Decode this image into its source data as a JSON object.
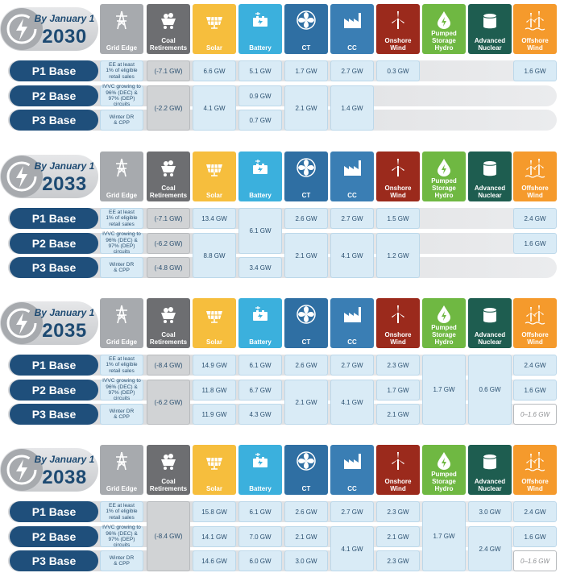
{
  "columns": [
    {
      "key": "grid",
      "label": [
        "Grid Edge"
      ],
      "icon": "transmission-tower-icon",
      "color": "#a7aaae"
    },
    {
      "key": "coal",
      "label": [
        "Coal",
        "Retirements"
      ],
      "icon": "coal-cart-icon",
      "color": "#6d6e71"
    },
    {
      "key": "solar",
      "label": [
        "Solar"
      ],
      "icon": "solar-panel-icon",
      "color": "#f6be3d"
    },
    {
      "key": "batt",
      "label": [
        "Battery"
      ],
      "icon": "battery-icon",
      "color": "#3bb0dd"
    },
    {
      "key": "ct",
      "label": [
        "CT"
      ],
      "icon": "turbine-fan-icon",
      "color": "#2f6fa3"
    },
    {
      "key": "cc",
      "label": [
        "CC"
      ],
      "icon": "factory-icon",
      "color": "#3a7eb4"
    },
    {
      "key": "wind",
      "label": [
        "Onshore",
        "Wind"
      ],
      "icon": "wind-turbine-icon",
      "color": "#9b2a1c"
    },
    {
      "key": "phs",
      "label": [
        "Pumped",
        "Storage",
        "Hydro"
      ],
      "icon": "water-bolt-icon",
      "color": "#6fb842"
    },
    {
      "key": "nuc",
      "label": [
        "Advanced",
        "Nuclear"
      ],
      "icon": "reactor-icon",
      "color": "#1e5d50"
    },
    {
      "key": "off",
      "label": [
        "Offshore",
        "Wind"
      ],
      "icon": "offshore-wind-icon",
      "color": "#f59a2c"
    }
  ],
  "row_labels": [
    "P1 Base",
    "P2 Base",
    "P3 Base"
  ],
  "grid_edge": [
    [
      "EE at least",
      "1% of eligible",
      "retail sales"
    ],
    [
      "IVVC growing to",
      "96% (DEC) &",
      "97% (DEP)",
      "circuits"
    ],
    [
      "Winter DR",
      "& CPP"
    ]
  ],
  "blocks": [
    {
      "by": "By January 1",
      "year": "2030",
      "cells": [
        {
          "col": "coal",
          "row": 0,
          "span": 1,
          "text": "(-7.1 GW)",
          "style": "coal"
        },
        {
          "col": "coal",
          "row": 1,
          "span": 2,
          "text": "(-2.2 GW)",
          "style": "coal"
        },
        {
          "col": "solar",
          "row": 0,
          "span": 1,
          "text": "6.6 GW"
        },
        {
          "col": "solar",
          "row": 1,
          "span": 2,
          "text": "4.1  GW"
        },
        {
          "col": "batt",
          "row": 0,
          "span": 1,
          "text": "5.1 GW"
        },
        {
          "col": "batt",
          "row": 1,
          "span": 1,
          "text": "0.9 GW"
        },
        {
          "col": "batt",
          "row": 2,
          "span": 1,
          "text": "0.7 GW"
        },
        {
          "col": "ct",
          "row": 0,
          "span": 1,
          "text": "1.7 GW"
        },
        {
          "col": "ct",
          "row": 1,
          "span": 2,
          "text": "2.1 GW"
        },
        {
          "col": "cc",
          "row": 0,
          "span": 1,
          "text": "2.7 GW"
        },
        {
          "col": "cc",
          "row": 1,
          "span": 2,
          "text": "1.4 GW"
        },
        {
          "col": "wind",
          "row": 0,
          "span": 1,
          "text": "0.3 GW"
        },
        {
          "col": "off",
          "row": 0,
          "span": 1,
          "text": "1.6 GW"
        }
      ]
    },
    {
      "by": "By January 1",
      "year": "2033",
      "cells": [
        {
          "col": "coal",
          "row": 0,
          "span": 1,
          "text": "(-7.1 GW)",
          "style": "coal"
        },
        {
          "col": "coal",
          "row": 1,
          "span": 1,
          "text": "(-6.2 GW)",
          "style": "coal"
        },
        {
          "col": "coal",
          "row": 2,
          "span": 1,
          "text": "(-4.8 GW)",
          "style": "coal"
        },
        {
          "col": "solar",
          "row": 0,
          "span": 1,
          "text": "13.4 GW"
        },
        {
          "col": "solar",
          "row": 1,
          "span": 2,
          "text": "8.8 GW"
        },
        {
          "col": "batt",
          "row": 0,
          "span": 2,
          "text": "6.1 GW"
        },
        {
          "col": "batt",
          "row": 2,
          "span": 1,
          "text": "3.4 GW"
        },
        {
          "col": "ct",
          "row": 0,
          "span": 1,
          "text": "2.6 GW"
        },
        {
          "col": "ct",
          "row": 1,
          "span": 2,
          "text": "2.1 GW"
        },
        {
          "col": "cc",
          "row": 0,
          "span": 1,
          "text": "2.7 GW"
        },
        {
          "col": "cc",
          "row": 1,
          "span": 2,
          "text": "4.1 GW"
        },
        {
          "col": "wind",
          "row": 0,
          "span": 1,
          "text": "1.5 GW"
        },
        {
          "col": "wind",
          "row": 1,
          "span": 2,
          "text": "1.2 GW"
        },
        {
          "col": "off",
          "row": 0,
          "span": 1,
          "text": "2.4 GW"
        },
        {
          "col": "off",
          "row": 1,
          "span": 1,
          "text": "1.6 GW"
        }
      ]
    },
    {
      "by": "By January 1",
      "year": "2035",
      "cells": [
        {
          "col": "coal",
          "row": 0,
          "span": 1,
          "text": "(-8.4 GW)",
          "style": "coal"
        },
        {
          "col": "coal",
          "row": 1,
          "span": 2,
          "text": "(-6.2 GW)",
          "style": "coal"
        },
        {
          "col": "solar",
          "row": 0,
          "span": 1,
          "text": "14.9 GW"
        },
        {
          "col": "solar",
          "row": 1,
          "span": 1,
          "text": "11.8 GW"
        },
        {
          "col": "solar",
          "row": 2,
          "span": 1,
          "text": "11.9 GW"
        },
        {
          "col": "batt",
          "row": 0,
          "span": 1,
          "text": "6.1 GW"
        },
        {
          "col": "batt",
          "row": 1,
          "span": 1,
          "text": "6.7 GW"
        },
        {
          "col": "batt",
          "row": 2,
          "span": 1,
          "text": "4.3 GW"
        },
        {
          "col": "ct",
          "row": 0,
          "span": 1,
          "text": "2.6 GW"
        },
        {
          "col": "ct",
          "row": 1,
          "span": 2,
          "text": "2.1 GW"
        },
        {
          "col": "cc",
          "row": 0,
          "span": 1,
          "text": "2.7 GW"
        },
        {
          "col": "cc",
          "row": 1,
          "span": 2,
          "text": "4.1 GW"
        },
        {
          "col": "wind",
          "row": 0,
          "span": 1,
          "text": "2.3 GW"
        },
        {
          "col": "wind",
          "row": 1,
          "span": 1,
          "text": "1.7 GW"
        },
        {
          "col": "wind",
          "row": 2,
          "span": 1,
          "text": "2.1 GW"
        },
        {
          "col": "phs",
          "row": 0,
          "span": 3,
          "text": "1.7 GW"
        },
        {
          "col": "nuc",
          "row": 0,
          "span": 3,
          "text": "0.6 GW"
        },
        {
          "col": "off",
          "row": 0,
          "span": 1,
          "text": "2.4 GW"
        },
        {
          "col": "off",
          "row": 1,
          "span": 1,
          "text": "1.6 GW"
        },
        {
          "col": "off",
          "row": 2,
          "span": 1,
          "text": "0–1.6 GW",
          "style": "white"
        }
      ]
    },
    {
      "by": "By January 1",
      "year": "2038",
      "cells": [
        {
          "col": "coal",
          "row": 0,
          "span": 3,
          "text": "(-8.4 GW)",
          "style": "coal"
        },
        {
          "col": "solar",
          "row": 0,
          "span": 1,
          "text": "15.8 GW"
        },
        {
          "col": "solar",
          "row": 1,
          "span": 1,
          "text": "14.1 GW"
        },
        {
          "col": "solar",
          "row": 2,
          "span": 1,
          "text": "14.6  GW"
        },
        {
          "col": "batt",
          "row": 0,
          "span": 1,
          "text": "6.1 GW"
        },
        {
          "col": "batt",
          "row": 1,
          "span": 1,
          "text": "7.0 GW"
        },
        {
          "col": "batt",
          "row": 2,
          "span": 1,
          "text": "6.0 GW"
        },
        {
          "col": "ct",
          "row": 0,
          "span": 1,
          "text": "2.6 GW"
        },
        {
          "col": "ct",
          "row": 1,
          "span": 1,
          "text": "2.1 GW"
        },
        {
          "col": "ct",
          "row": 2,
          "span": 1,
          "text": "3.0 GW"
        },
        {
          "col": "cc",
          "row": 0,
          "span": 1,
          "text": "2.7 GW"
        },
        {
          "col": "cc",
          "row": 1,
          "span": 2,
          "text": "4.1 GW"
        },
        {
          "col": "wind",
          "row": 0,
          "span": 1,
          "text": "2.3 GW"
        },
        {
          "col": "wind",
          "row": 1,
          "span": 1,
          "text": "2.1 GW"
        },
        {
          "col": "wind",
          "row": 2,
          "span": 1,
          "text": "2.3 GW"
        },
        {
          "col": "phs",
          "row": 0,
          "span": 3,
          "text": "1.7 GW"
        },
        {
          "col": "nuc",
          "row": 0,
          "span": 1,
          "text": "3.0 GW"
        },
        {
          "col": "nuc",
          "row": 1,
          "span": 2,
          "text": "2.4 GW"
        },
        {
          "col": "off",
          "row": 0,
          "span": 1,
          "text": "2.4 GW"
        },
        {
          "col": "off",
          "row": 1,
          "span": 1,
          "text": "1.6 GW"
        },
        {
          "col": "off",
          "row": 2,
          "span": 1,
          "text": "0–1.6 GW",
          "style": "white"
        }
      ]
    }
  ]
}
